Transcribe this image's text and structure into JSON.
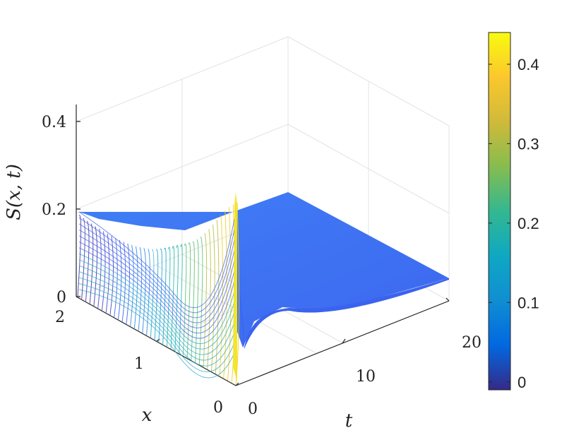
{
  "chart_data": {
    "type": "surface",
    "colormap": "parula",
    "axes": {
      "x": {
        "label": "x",
        "range": [
          0,
          2
        ],
        "ticks": [
          "0",
          "1",
          "2"
        ]
      },
      "t": {
        "label": "t",
        "range": [
          0,
          20
        ],
        "ticks": [
          "0",
          "10",
          "20"
        ]
      },
      "z": {
        "label": "S(x,t)",
        "range": [
          0,
          0.4
        ],
        "ticks": [
          "0",
          "0.2",
          "0.4"
        ]
      }
    },
    "colorbar": {
      "range": [
        -0.01,
        0.44
      ],
      "ticks": [
        "0",
        "0.1",
        "0.2",
        "0.3",
        "0.4"
      ]
    },
    "grid": true,
    "view": "3d-isometric",
    "surface_profile": {
      "early_time_t0": {
        "x": [
          0,
          0.25,
          0.5,
          0.75,
          1.0,
          1.25,
          1.5,
          1.75,
          2.0
        ],
        "S": [
          0.43,
          0.28,
          0.16,
          0.1,
          0.08,
          0.1,
          0.13,
          0.17,
          0.2
        ]
      },
      "steady_state_t20": {
        "x": [
          0,
          1,
          2
        ],
        "S": [
          0.1,
          0.1,
          0.1
        ]
      }
    }
  }
}
